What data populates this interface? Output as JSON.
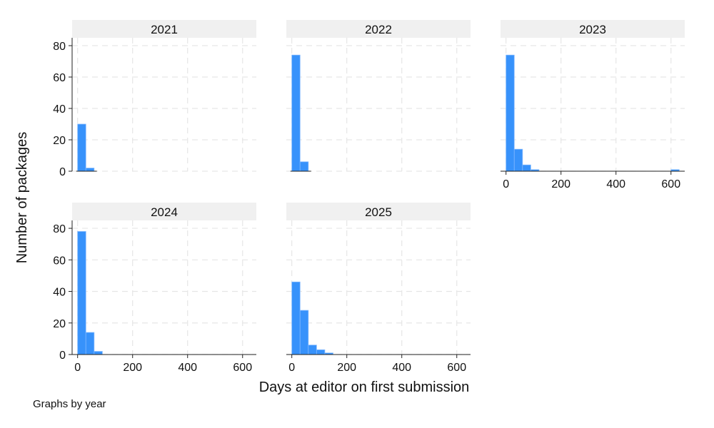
{
  "chart_data": {
    "type": "bar",
    "subtype": "histogram-small-multiples",
    "xlabel": "Days at editor on first submission",
    "ylabel": "Number of packages",
    "note": "Graphs by year",
    "xlim": [
      -20,
      650
    ],
    "ylim": [
      0,
      85
    ],
    "xticks": [
      0,
      200,
      400,
      600
    ],
    "yticks": [
      0,
      20,
      40,
      60,
      80
    ],
    "bin_width": 30,
    "grid": true,
    "bar_color": "#3792fb",
    "bar_edge_color": "#7fb8ff",
    "strip_color": "#f0f0f0",
    "grid_color": "#e6e6e6",
    "panels": [
      {
        "year": "2021",
        "bins": [
          {
            "x0": 0,
            "x1": 30,
            "value": 30
          },
          {
            "x0": 30,
            "x1": 60,
            "value": 2
          }
        ]
      },
      {
        "year": "2022",
        "bins": [
          {
            "x0": 0,
            "x1": 30,
            "value": 74
          },
          {
            "x0": 30,
            "x1": 60,
            "value": 6
          }
        ]
      },
      {
        "year": "2023",
        "bins": [
          {
            "x0": 0,
            "x1": 30,
            "value": 74
          },
          {
            "x0": 30,
            "x1": 60,
            "value": 14
          },
          {
            "x0": 60,
            "x1": 90,
            "value": 4
          },
          {
            "x0": 90,
            "x1": 120,
            "value": 1
          },
          {
            "x0": 600,
            "x1": 630,
            "value": 1
          }
        ]
      },
      {
        "year": "2024",
        "bins": [
          {
            "x0": 0,
            "x1": 30,
            "value": 78
          },
          {
            "x0": 30,
            "x1": 60,
            "value": 14
          },
          {
            "x0": 60,
            "x1": 90,
            "value": 2
          }
        ]
      },
      {
        "year": "2025",
        "bins": [
          {
            "x0": 0,
            "x1": 30,
            "value": 46
          },
          {
            "x0": 30,
            "x1": 60,
            "value": 28
          },
          {
            "x0": 60,
            "x1": 90,
            "value": 6
          },
          {
            "x0": 90,
            "x1": 120,
            "value": 3
          },
          {
            "x0": 120,
            "x1": 150,
            "value": 1
          }
        ]
      }
    ]
  }
}
